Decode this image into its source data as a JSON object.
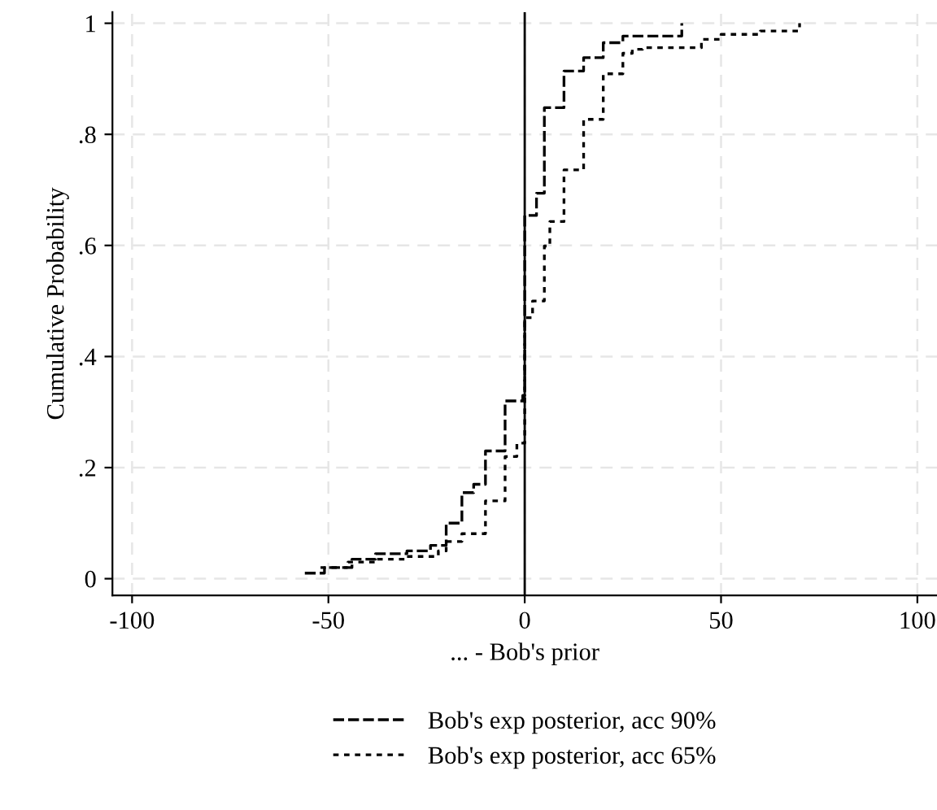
{
  "chart_data": {
    "type": "step",
    "xlabel": "... - Bob's prior",
    "ylabel": "Cumulative Probability",
    "xlim": [
      -105,
      105
    ],
    "xticks": [
      -100,
      -50,
      0,
      50,
      100
    ],
    "ylim": [
      -0.03,
      1.02
    ],
    "yticks": [
      {
        "value": 0,
        "label": "0"
      },
      {
        "value": 0.2,
        "label": ".2"
      },
      {
        "value": 0.4,
        "label": ".4"
      },
      {
        "value": 0.6,
        "label": ".6"
      },
      {
        "value": 0.8,
        "label": ".8"
      },
      {
        "value": 1,
        "label": "1"
      }
    ],
    "grid": true,
    "legend": "bottom",
    "ref_lines": [
      {
        "axis": "x",
        "value": 0,
        "color": "#000000",
        "line_style": "solid"
      }
    ],
    "series": [
      {
        "name": "Bob's exp posterior, acc 90%",
        "color": "#000000",
        "line_style": "dashed",
        "x": [
          -56,
          -51,
          -44,
          -38,
          -30,
          -24,
          -20,
          -16,
          -13,
          -10,
          -5,
          -0.5,
          0,
          3,
          5,
          10,
          15,
          20,
          25,
          40
        ],
        "values": [
          0.01,
          0.02,
          0.035,
          0.045,
          0.05,
          0.06,
          0.1,
          0.155,
          0.17,
          0.23,
          0.32,
          0.33,
          0.654,
          0.694,
          0.848,
          0.914,
          0.938,
          0.965,
          0.977,
          1.0
        ]
      },
      {
        "name": "Bob's exp posterior, acc 65%",
        "color": "#000000",
        "line_style": "dotted",
        "x": [
          -52,
          -45,
          -38,
          -30,
          -22,
          -20,
          -16,
          -10,
          -5,
          -2,
          0,
          2,
          5,
          6.4,
          10,
          15,
          20,
          25,
          27.4,
          30,
          45,
          50,
          60,
          70
        ],
        "values": [
          0.02,
          0.03,
          0.035,
          0.04,
          0.05,
          0.067,
          0.081,
          0.14,
          0.22,
          0.244,
          0.47,
          0.5,
          0.599,
          0.643,
          0.736,
          0.827,
          0.909,
          0.946,
          0.953,
          0.956,
          0.971,
          0.98,
          0.986,
          1.0
        ]
      }
    ]
  }
}
